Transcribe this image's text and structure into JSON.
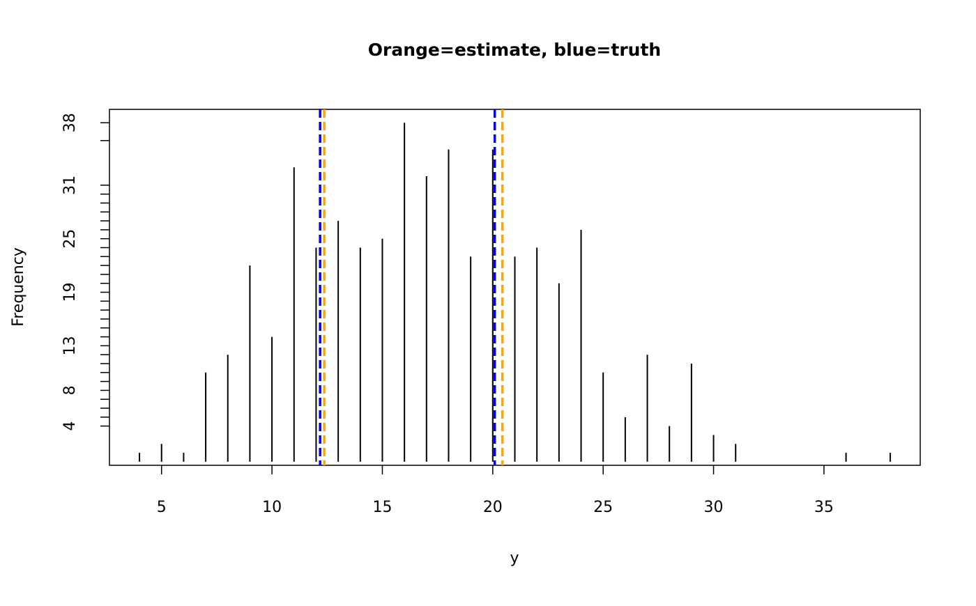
{
  "chart_data": {
    "type": "spike",
    "title": "Orange=estimate, blue=truth",
    "xlabel": "y",
    "ylabel": "Frequency",
    "x": [
      4,
      5,
      6,
      7,
      8,
      9,
      10,
      11,
      12,
      13,
      14,
      15,
      16,
      17,
      18,
      19,
      20,
      21,
      22,
      23,
      24,
      25,
      26,
      27,
      28,
      29,
      30,
      31,
      36,
      38
    ],
    "values": [
      1,
      2,
      1,
      10,
      12,
      22,
      14,
      33,
      24,
      27,
      24,
      25,
      38,
      32,
      35,
      23,
      35,
      23,
      24,
      20,
      26,
      10,
      5,
      12,
      4,
      11,
      3,
      2,
      1,
      1
    ],
    "color": "#000000",
    "xlim": [
      2.64,
      39.36
    ],
    "ylim": [
      -0.4,
      39.5
    ],
    "xticks": [
      5,
      10,
      15,
      20,
      25,
      30,
      35
    ],
    "yticks": [
      4,
      8,
      13,
      19,
      25,
      31,
      38
    ],
    "yminor_ticks": [
      5,
      6,
      7,
      9,
      10,
      11,
      12,
      14,
      15,
      16,
      17,
      18,
      20,
      21,
      22,
      23,
      24,
      26,
      27,
      28,
      29,
      30,
      36
    ],
    "vlines": [
      {
        "name": "truth",
        "color": "#0000ff",
        "values": [
          12.18,
          20.09
        ]
      },
      {
        "name": "estimate",
        "color": "#ffa500",
        "values": [
          12.37,
          20.44
        ]
      }
    ]
  }
}
